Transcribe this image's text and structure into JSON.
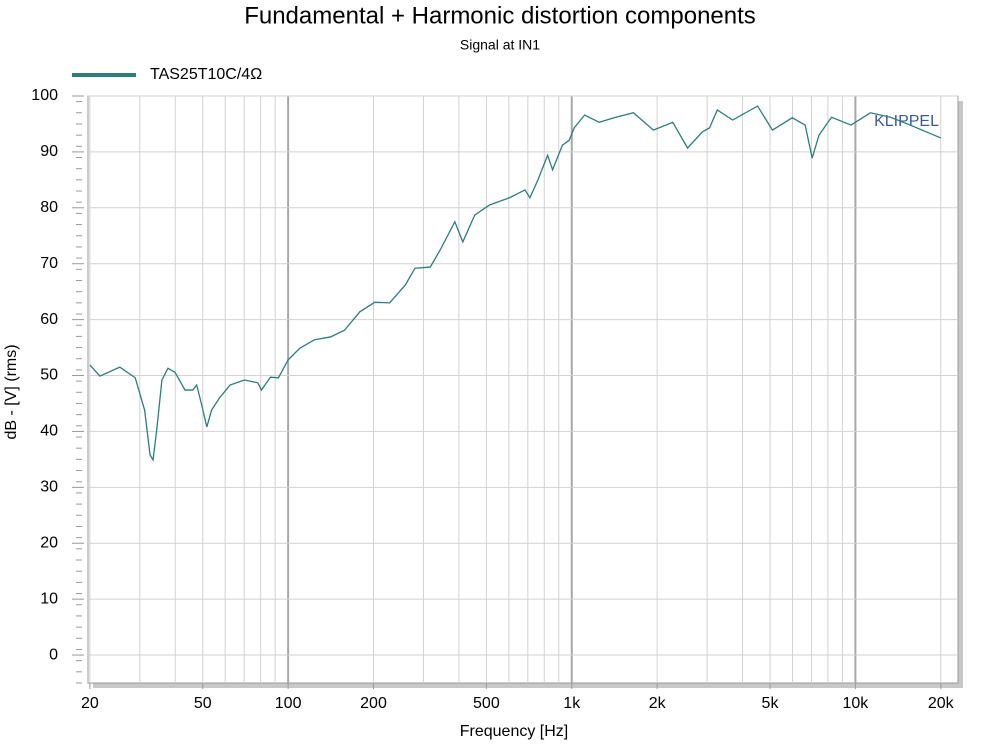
{
  "chart_data": {
    "type": "line",
    "title": "Fundamental + Harmonic distortion components",
    "subtitle": "Signal at IN1",
    "xlabel": "Frequency [Hz]",
    "ylabel": "dB - [V]  (rms)",
    "annotation": "KLIPPEL",
    "xscale": "log",
    "grid": true,
    "legend": "top-left",
    "xlim": [
      19.7,
      23000
    ],
    "ylim": [
      -5,
      100
    ],
    "xticks": [
      20,
      50,
      100,
      200,
      500,
      {
        "value": 1000,
        "label": "1k"
      },
      {
        "value": 2000,
        "label": "2k"
      },
      {
        "value": 5000,
        "label": "5k"
      },
      {
        "value": 10000,
        "label": "10k"
      },
      {
        "value": 20000,
        "label": "20k"
      }
    ],
    "yticks": [
      0,
      10,
      20,
      30,
      40,
      50,
      60,
      70,
      80,
      90,
      100
    ],
    "x": [
      20,
      21.7,
      25.5,
      28.9,
      31.2,
      32.6,
      33.4,
      34.4,
      35.9,
      37.7,
      39.9,
      43.3,
      46.1,
      47.6,
      49.6,
      51.7,
      53.7,
      57.3,
      62.4,
      70.2,
      78.2,
      80.5,
      86.6,
      92.4,
      100,
      110,
      124,
      141,
      158,
      179,
      202,
      228,
      259,
      280,
      317,
      344,
      387,
      413,
      455,
      513,
      603,
      684,
      712,
      760,
      822,
      856,
      927,
      980,
      1020,
      1110,
      1250,
      1410,
      1650,
      1940,
      2270,
      2560,
      2890,
      3060,
      3260,
      3690,
      4520,
      5100,
      5990,
      6650,
      7040,
      7440,
      8240,
      9650,
      11300,
      13300,
      15600,
      20000
    ],
    "series": [
      {
        "name": "TAS25T10C/4Ω",
        "color": "#2e7d7d",
        "values": [
          51.9,
          49.9,
          51.5,
          49.6,
          43.8,
          35.8,
          34.9,
          40.2,
          49.2,
          51.3,
          50.6,
          47.4,
          47.4,
          48.3,
          44.7,
          40.8,
          43.8,
          46.0,
          48.3,
          49.2,
          48.7,
          47.4,
          49.7,
          49.6,
          52.8,
          54.9,
          56.4,
          56.9,
          58.1,
          61.4,
          63.1,
          63.0,
          66.2,
          69.2,
          69.4,
          72.5,
          77.5,
          73.9,
          78.7,
          80.5,
          81.8,
          83.2,
          81.8,
          85.0,
          89.4,
          86.8,
          91.2,
          92.1,
          94.3,
          96.6,
          95.3,
          96.1,
          97.0,
          93.9,
          95.3,
          90.7,
          93.6,
          94.3,
          97.5,
          95.7,
          98.2,
          93.9,
          96.1,
          94.8,
          88.9,
          93.0,
          96.2,
          94.8,
          97.0,
          96.2,
          94.8,
          92.5
        ]
      }
    ]
  }
}
